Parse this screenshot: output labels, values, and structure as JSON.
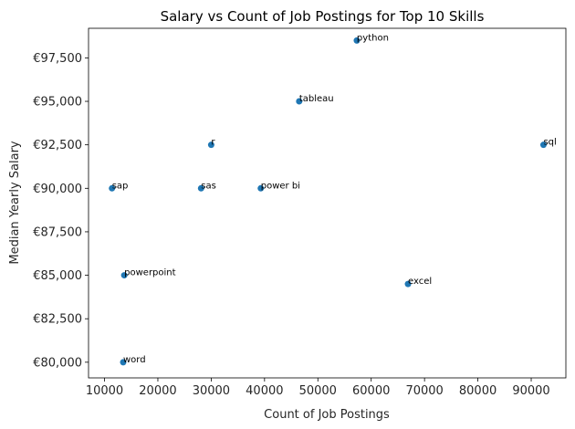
{
  "chart_data": {
    "type": "scatter",
    "title": "Salary vs Count of Job Postings for Top 10 Skills",
    "xlabel": "Count of Job Postings",
    "ylabel": "Median Yearly Salary",
    "xlim": [
      7000,
      96500
    ],
    "ylim": [
      79100,
      99200
    ],
    "x_ticks": [
      10000,
      20000,
      30000,
      40000,
      50000,
      60000,
      70000,
      80000,
      90000
    ],
    "x_tick_labels": [
      "10000",
      "20000",
      "30000",
      "40000",
      "50000",
      "60000",
      "70000",
      "80000",
      "90000"
    ],
    "y_ticks": [
      80000,
      82500,
      85000,
      87500,
      90000,
      92500,
      95000,
      97500
    ],
    "y_tick_labels": [
      "€80,000",
      "€82,500",
      "€85,000",
      "€87,500",
      "€90,000",
      "€92,500",
      "€95,000",
      "€97,500"
    ],
    "grid": false,
    "marker_color": "#1f77b4",
    "points": [
      {
        "label": "python",
        "x": 57300,
        "y": 98500
      },
      {
        "label": "tableau",
        "x": 46500,
        "y": 95000
      },
      {
        "label": "r",
        "x": 30000,
        "y": 92500
      },
      {
        "label": "sql",
        "x": 92300,
        "y": 92500
      },
      {
        "label": "sap",
        "x": 11400,
        "y": 90000
      },
      {
        "label": "sas",
        "x": 28100,
        "y": 90000
      },
      {
        "label": "power bi",
        "x": 39300,
        "y": 90000
      },
      {
        "label": "powerpoint",
        "x": 13700,
        "y": 85000
      },
      {
        "label": "excel",
        "x": 66900,
        "y": 84500
      },
      {
        "label": "word",
        "x": 13500,
        "y": 80000
      }
    ]
  }
}
